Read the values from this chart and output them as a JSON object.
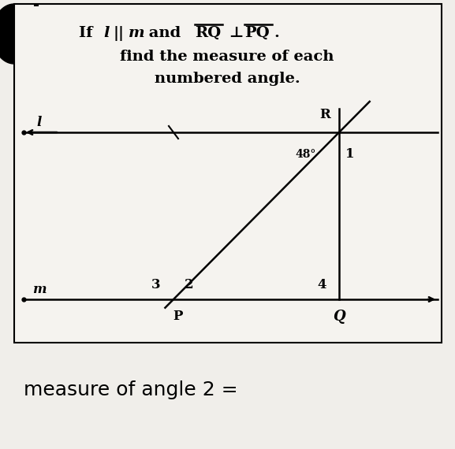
{
  "bg_color": "#e8e6e0",
  "box_bg": "#f5f3ef",
  "title_line2": "find the measure of each",
  "title_line3": "numbered angle.",
  "angle_label": "48°",
  "label_1": "1",
  "label_2": "2",
  "label_3": "3",
  "label_4": "4",
  "label_R": "R",
  "label_P": "P",
  "label_Q": "Q",
  "label_l": "l",
  "label_m": "m",
  "footer_text": "measure of angle 2 =",
  "line_color": "#000000",
  "text_color": "#000000",
  "footer_bg": "#f0eeea"
}
